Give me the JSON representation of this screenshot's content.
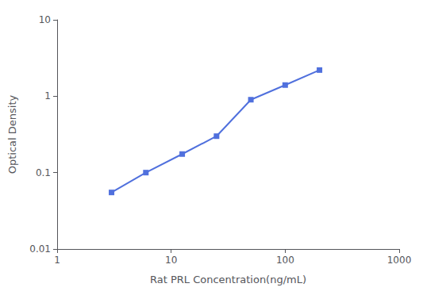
{
  "chart_data": {
    "type": "line",
    "x": [
      3.0,
      6.0,
      12.5,
      25.0,
      50.0,
      100.0,
      200.0
    ],
    "values": [
      0.055,
      0.1,
      0.175,
      0.3,
      0.9,
      1.4,
      2.2
    ],
    "xlabel": "Rat PRL Concentration(ng/mL)",
    "ylabel": "Optical Density",
    "log": true,
    "xlim": [
      1,
      1000
    ],
    "ylim": [
      0.01,
      10
    ],
    "xticks": [
      1,
      10,
      100,
      1000
    ],
    "yticks": [
      0.01,
      0.1,
      1,
      10
    ],
    "marker": "square",
    "grid": false
  }
}
